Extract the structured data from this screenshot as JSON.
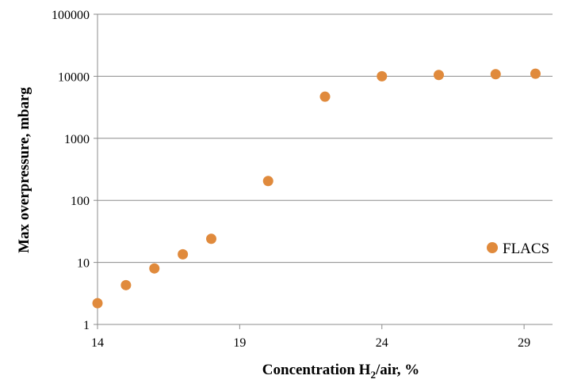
{
  "chart_data": {
    "type": "scatter",
    "xlabel_prefix": "Concentration H",
    "xlabel_sub": "2",
    "xlabel_suffix": "/air, %",
    "ylabel": "Max overpressure, mbarg",
    "xlim": [
      14,
      30
    ],
    "ylim": [
      1,
      100000
    ],
    "yscale": "log",
    "xticks": [
      "14",
      "19",
      "24",
      "29"
    ],
    "xtick_values": [
      14,
      19,
      24,
      29
    ],
    "yticks": [
      "1",
      "10",
      "100",
      "1000",
      "10000",
      "100000"
    ],
    "ytick_values": [
      1,
      10,
      100,
      1000,
      10000,
      100000
    ],
    "grid": "horizontal",
    "legend_position": "right",
    "series": [
      {
        "name": "FLACS",
        "color": "#E08A3C",
        "x": [
          14,
          15,
          16,
          17,
          18,
          20,
          22,
          24,
          26,
          28,
          29.4
        ],
        "y": [
          2.2,
          4.3,
          8.0,
          13.5,
          24,
          205,
          4700,
          10000,
          10500,
          10800,
          11000
        ]
      }
    ]
  }
}
